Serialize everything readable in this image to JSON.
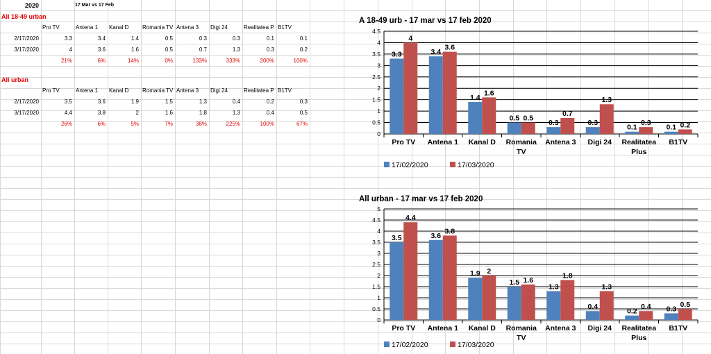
{
  "sheet": {
    "year": "2020",
    "comparison": "17 Mar vs 17 Feb",
    "columns": [
      "Pro TV",
      "Antena 1",
      "Kanal D",
      "Romania TV",
      "Antena 3",
      "Digi 24",
      "Realitatea P",
      "B1TV"
    ],
    "sections": [
      {
        "title": "All 18-49 urban",
        "rows": [
          {
            "date": "2/17/2020",
            "values": [
              "3.3",
              "3.4",
              "1.4",
              "0.5",
              "0.3",
              "0.3",
              "0.1",
              "0.1"
            ]
          },
          {
            "date": "3/17/2020",
            "values": [
              "4",
              "3.6",
              "1.6",
              "0.5",
              "0.7",
              "1.3",
              "0.3",
              "0.2"
            ]
          }
        ],
        "pct": [
          "21%",
          "6%",
          "14%",
          "0%",
          "133%",
          "333%",
          "200%",
          "100%"
        ]
      },
      {
        "title": "All urban",
        "rows": [
          {
            "date": "2/17/2020",
            "values": [
              "3.5",
              "3.6",
              "1.9",
              "1.5",
              "1.3",
              "0.4",
              "0.2",
              "0.3"
            ]
          },
          {
            "date": "3/17/2020",
            "values": [
              "4.4",
              "3.8",
              "2",
              "1.6",
              "1.8",
              "1.3",
              "0.4",
              "0.5"
            ]
          }
        ],
        "pct": [
          "26%",
          "6%",
          "5%",
          "7%",
          "38%",
          "225%",
          "100%",
          "67%"
        ]
      }
    ]
  },
  "colors": {
    "series1": "#4f81bd",
    "series2": "#c0504d",
    "grid": "#000000",
    "sheet_grid": "#d9d9d9"
  },
  "chart_data": [
    {
      "type": "bar",
      "title": "A 18-49 urb - 17 mar vs 17 feb 2020",
      "categories": [
        "Pro TV",
        "Antena 1",
        "Kanal D",
        "Romania TV",
        "Antena 3",
        "Digi 24",
        "Realitatea Plus",
        "B1TV"
      ],
      "series": [
        {
          "name": "17/02/2020",
          "values": [
            3.3,
            3.4,
            1.4,
            0.5,
            0.3,
            0.3,
            0.1,
            0.1
          ]
        },
        {
          "name": "17/03/2020",
          "values": [
            4,
            3.6,
            1.6,
            0.5,
            0.7,
            1.3,
            0.3,
            0.2
          ]
        }
      ],
      "ylim": [
        0,
        4.5
      ],
      "yticks": [
        "0",
        "0.5",
        "1",
        "1.5",
        "2",
        "2.5",
        "3",
        "3.5",
        "4",
        "4.5"
      ],
      "grid": true,
      "legend": "bottom-left"
    },
    {
      "type": "bar",
      "title": "All urban - 17 mar vs 17 feb 2020",
      "categories": [
        "Pro TV",
        "Antena 1",
        "Kanal D",
        "Romania TV",
        "Antena 3",
        "Digi 24",
        "Realitatea Plus",
        "B1TV"
      ],
      "series": [
        {
          "name": "17/02/2020",
          "values": [
            3.5,
            3.6,
            1.9,
            1.5,
            1.3,
            0.4,
            0.2,
            0.3
          ]
        },
        {
          "name": "17/03/2020",
          "values": [
            4.4,
            3.8,
            2,
            1.6,
            1.8,
            1.3,
            0.4,
            0.5
          ]
        }
      ],
      "ylim": [
        0,
        5
      ],
      "yticks": [
        "0",
        "0.5",
        "1",
        "1.5",
        "2",
        "2.5",
        "3",
        "3.5",
        "4",
        "4.5",
        "5"
      ],
      "grid": true,
      "legend": "bottom-left"
    }
  ]
}
